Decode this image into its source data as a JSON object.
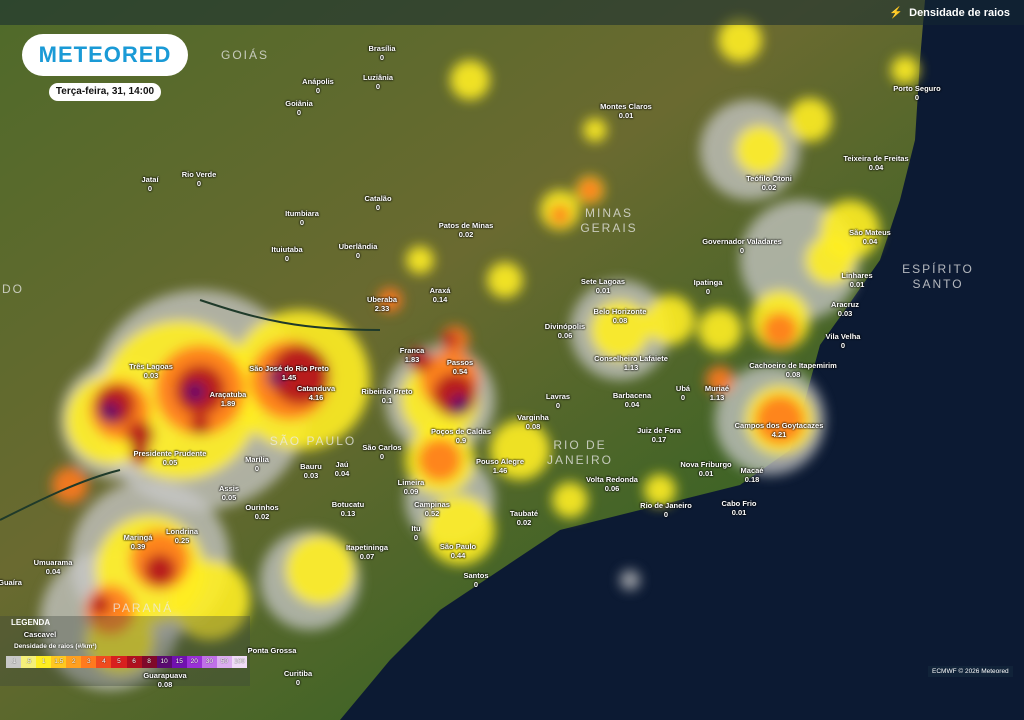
{
  "header": {
    "layer_label": "Densidade de raios",
    "layer_icon": "lightning-icon"
  },
  "brand": {
    "logo": "METEORED",
    "date": "Terça-feira, 31, 14:00"
  },
  "regions": [
    "GOIÁS",
    "MINAS GERAIS",
    "SÃO PAULO",
    "RIO DE JANEIRO",
    "ESPÍRITO SANTO",
    "PARANÁ",
    "DO"
  ],
  "cities": [
    {
      "name": "Brasília",
      "value": "0"
    },
    {
      "name": "Anápolis",
      "value": "0"
    },
    {
      "name": "Luziânia",
      "value": "0"
    },
    {
      "name": "Goiânia",
      "value": "0"
    },
    {
      "name": "Jataí",
      "value": "0"
    },
    {
      "name": "Rio Verde",
      "value": "0"
    },
    {
      "name": "Catalão",
      "value": "0"
    },
    {
      "name": "Itumbiara",
      "value": "0"
    },
    {
      "name": "Patos de Minas",
      "value": "0.02"
    },
    {
      "name": "Ituiutaba",
      "value": "0"
    },
    {
      "name": "Uberlândia",
      "value": "0"
    },
    {
      "name": "Montes Claros",
      "value": "0.01"
    },
    {
      "name": "Porto Seguro",
      "value": "0"
    },
    {
      "name": "Teixeira de Freitas",
      "value": "0.04"
    },
    {
      "name": "Teófilo Otoni",
      "value": "0.02"
    },
    {
      "name": "Governador Valadares",
      "value": "0"
    },
    {
      "name": "São Mateus",
      "value": "0.04"
    },
    {
      "name": "Linhares",
      "value": "0.01"
    },
    {
      "name": "Aracruz",
      "value": "0.03"
    },
    {
      "name": "Vila Velha",
      "value": "0"
    },
    {
      "name": "Sete Lagoas",
      "value": "0.01"
    },
    {
      "name": "Ipatinga",
      "value": "0"
    },
    {
      "name": "Belo Horizonte",
      "value": "0.08"
    },
    {
      "name": "Divinópolis",
      "value": "0.06"
    },
    {
      "name": "Conselheiro Lafaiete",
      "value": "1.13"
    },
    {
      "name": "Cachoeiro de Itapemirim",
      "value": "0.08"
    },
    {
      "name": "Ubá",
      "value": "0"
    },
    {
      "name": "Muriaé",
      "value": "1.13"
    },
    {
      "name": "Lavras",
      "value": "0"
    },
    {
      "name": "Barbacena",
      "value": "0.04"
    },
    {
      "name": "Varginha",
      "value": "0.08"
    },
    {
      "name": "Juiz de Fora",
      "value": "0.17"
    },
    {
      "name": "Campos dos Goytacazes",
      "value": "4.21"
    },
    {
      "name": "Nova Friburgo",
      "value": "0.01"
    },
    {
      "name": "Macaé",
      "value": "0.18"
    },
    {
      "name": "Volta Redonda",
      "value": "0.06"
    },
    {
      "name": "Rio de Janeiro",
      "value": "0"
    },
    {
      "name": "Cabo Frio",
      "value": "0.01"
    },
    {
      "name": "Taubaté",
      "value": "0.02"
    },
    {
      "name": "Uberaba",
      "value": "2.33"
    },
    {
      "name": "Araxá",
      "value": "0.14"
    },
    {
      "name": "Franca",
      "value": "1.83"
    },
    {
      "name": "Passos",
      "value": "0.54"
    },
    {
      "name": "Três Lagoas",
      "value": "0.03"
    },
    {
      "name": "São José do Rio Preto",
      "value": "1.45"
    },
    {
      "name": "Catanduva",
      "value": "4.16"
    },
    {
      "name": "Araçatuba",
      "value": "1.89"
    },
    {
      "name": "Ribeirão Preto",
      "value": "0.1"
    },
    {
      "name": "Presidente Prudente",
      "value": "0.05"
    },
    {
      "name": "Marília",
      "value": "0"
    },
    {
      "name": "Bauru",
      "value": "0.03"
    },
    {
      "name": "Jaú",
      "value": "0.04"
    },
    {
      "name": "São Carlos",
      "value": "0"
    },
    {
      "name": "Poços de Caldas",
      "value": "0.9"
    },
    {
      "name": "Pouso Alegre",
      "value": "1.46"
    },
    {
      "name": "Limeira",
      "value": "0.09"
    },
    {
      "name": "Assis",
      "value": "0.05"
    },
    {
      "name": "Botucatu",
      "value": "0.13"
    },
    {
      "name": "Ourinhos",
      "value": "0.02"
    },
    {
      "name": "Campinas",
      "value": "0.52"
    },
    {
      "name": "Maringá",
      "value": "0.39"
    },
    {
      "name": "Londrina",
      "value": "0.25"
    },
    {
      "name": "Itu",
      "value": "0"
    },
    {
      "name": "Itapetininga",
      "value": "0.07"
    },
    {
      "name": "São Paulo",
      "value": "0.44"
    },
    {
      "name": "Umuarama",
      "value": "0.04"
    },
    {
      "name": "Guaíra",
      "value": ""
    },
    {
      "name": "Santos",
      "value": "0"
    },
    {
      "name": "Cascavel",
      "value": ""
    },
    {
      "name": "Ponta Grossa",
      "value": ""
    },
    {
      "name": "Guarapuava",
      "value": "0.08"
    },
    {
      "name": "Curitiba",
      "value": "0"
    }
  ],
  "legend": {
    "title": "LEGENDA",
    "subtitle": "Densidade de raios (#/km²)",
    "stops": [
      {
        "label": ".1",
        "color": "#c8c8c8"
      },
      {
        "label": ".5",
        "color": "#f5f07a"
      },
      {
        "label": "1",
        "color": "#ffee22"
      },
      {
        "label": "1.5",
        "color": "#ffc820"
      },
      {
        "label": "2",
        "color": "#ffa020"
      },
      {
        "label": "3",
        "color": "#ff7a1e"
      },
      {
        "label": "4",
        "color": "#f04a1e"
      },
      {
        "label": "5",
        "color": "#d8201e"
      },
      {
        "label": "6",
        "color": "#b0101e"
      },
      {
        "label": "8",
        "color": "#80082a"
      },
      {
        "label": "10",
        "color": "#5a0a70"
      },
      {
        "label": "15",
        "color": "#7010b0"
      },
      {
        "label": "20",
        "color": "#9a30d8"
      },
      {
        "label": "30",
        "color": "#c070e8"
      },
      {
        "label": "50",
        "color": "#dcaef0"
      },
      {
        "label": "100",
        "color": "#f0dcf8"
      }
    ]
  },
  "credit": "ECMWF © 2026 Meteored"
}
